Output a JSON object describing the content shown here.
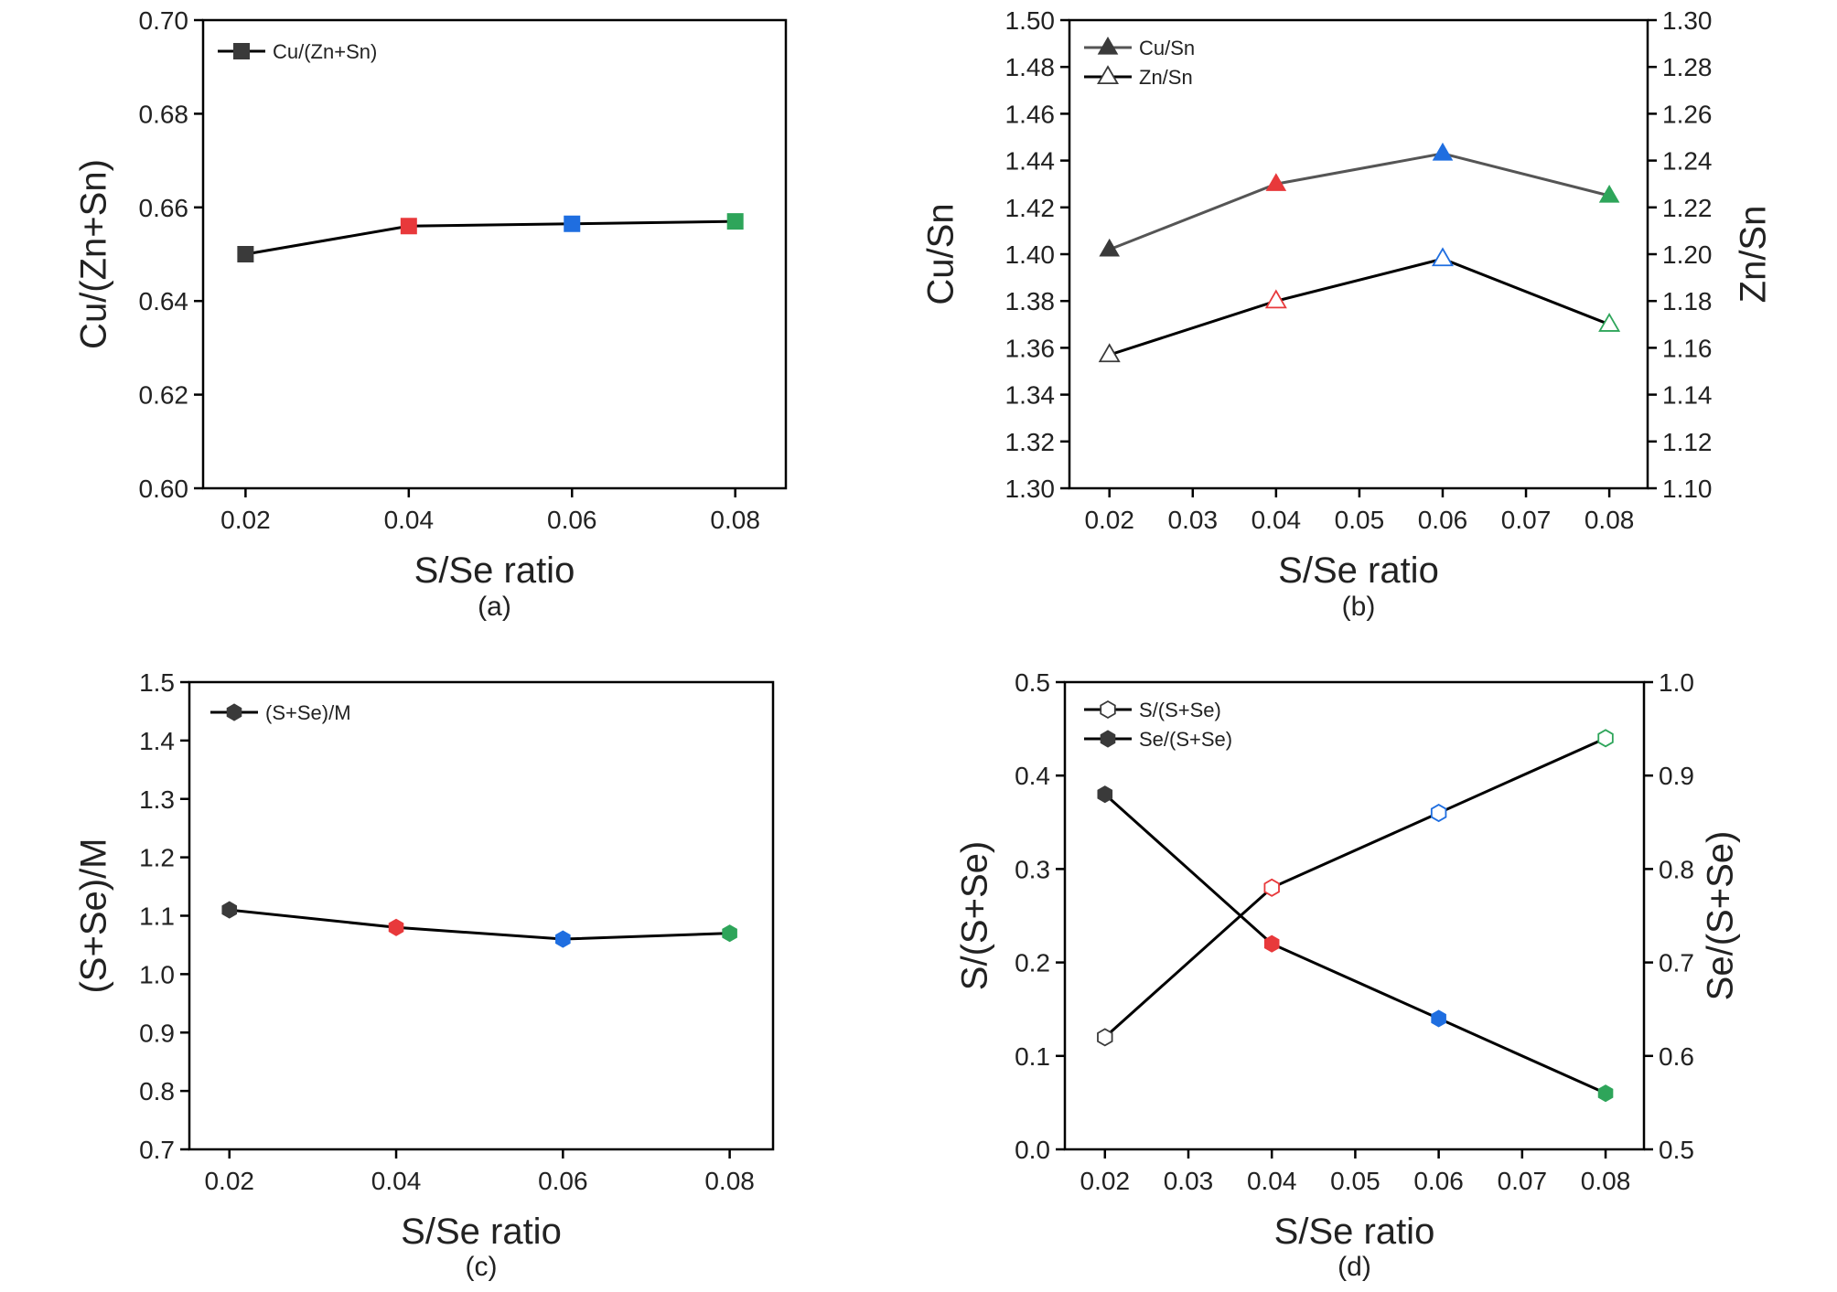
{
  "colors": {
    "axis": "#000000",
    "marker_dark": "#3a3a3a",
    "gray_line": "#555555",
    "red": "#e8393b",
    "blue": "#1f6ee0",
    "green": "#2ea55a"
  },
  "chart_data": [
    {
      "panel": "a",
      "caption": "(a)",
      "type": "line",
      "xlabel": "S/Se ratio",
      "ylabel": "Cu/(Zn+Sn)",
      "x_ticks": [
        "0.02",
        "0.04",
        "0.06",
        "0.08"
      ],
      "y_ticks": [
        "0.60",
        "0.62",
        "0.64",
        "0.66",
        "0.68",
        "0.70"
      ],
      "ylim": [
        0.6,
        0.7
      ],
      "series": [
        {
          "name": "Cu/(Zn+Sn)",
          "marker": "square",
          "filled": true,
          "x": [
            0.02,
            0.04,
            0.06,
            0.08
          ],
          "values": [
            0.65,
            0.656,
            0.6565,
            0.657
          ]
        }
      ]
    },
    {
      "panel": "b",
      "caption": "(b)",
      "type": "line",
      "xlabel": "S/Se ratio",
      "ylabel": "Cu/Sn",
      "y2label": "Zn/Sn",
      "x_ticks": [
        "0.02",
        "0.03",
        "0.04",
        "0.05",
        "0.06",
        "0.07",
        "0.08"
      ],
      "y_ticks": [
        "1.30",
        "1.32",
        "1.34",
        "1.36",
        "1.38",
        "1.40",
        "1.42",
        "1.44",
        "1.46",
        "1.48",
        "1.50"
      ],
      "y2_ticks": [
        "1.10",
        "1.12",
        "1.14",
        "1.16",
        "1.18",
        "1.20",
        "1.22",
        "1.24",
        "1.26",
        "1.28",
        "1.30"
      ],
      "ylim": [
        1.3,
        1.5
      ],
      "y2lim": [
        1.1,
        1.3
      ],
      "series": [
        {
          "name": "Cu/Sn",
          "marker": "triangle",
          "filled": true,
          "axis": "left",
          "x": [
            0.02,
            0.04,
            0.06,
            0.08
          ],
          "values": [
            1.402,
            1.43,
            1.443,
            1.425
          ]
        },
        {
          "name": "Zn/Sn",
          "marker": "triangle",
          "filled": false,
          "axis": "right",
          "x": [
            0.02,
            0.04,
            0.06,
            0.08
          ],
          "values": [
            1.157,
            1.18,
            1.198,
            1.17
          ]
        }
      ]
    },
    {
      "panel": "c",
      "caption": "(c)",
      "type": "line",
      "xlabel": "S/Se ratio",
      "ylabel": "(S+Se)/M",
      "x_ticks": [
        "0.02",
        "0.04",
        "0.06",
        "0.08"
      ],
      "y_ticks": [
        "0.7",
        "0.8",
        "0.9",
        "1.0",
        "1.1",
        "1.2",
        "1.3",
        "1.4",
        "1.5"
      ],
      "ylim": [
        0.7,
        1.5
      ],
      "series": [
        {
          "name": "(S+Se)/M",
          "marker": "hexagon",
          "filled": true,
          "x": [
            0.02,
            0.04,
            0.06,
            0.08
          ],
          "values": [
            1.11,
            1.08,
            1.06,
            1.07
          ]
        }
      ]
    },
    {
      "panel": "d",
      "caption": "(d)",
      "type": "line",
      "xlabel": "S/Se ratio",
      "ylabel": "S/(S+Se)",
      "y2label": "Se/(S+Se)",
      "x_ticks": [
        "0.02",
        "0.03",
        "0.04",
        "0.05",
        "0.06",
        "0.07",
        "0.08"
      ],
      "y_ticks": [
        "0.0",
        "0.1",
        "0.2",
        "0.3",
        "0.4",
        "0.5"
      ],
      "y2_ticks": [
        "0.5",
        "0.6",
        "0.7",
        "0.8",
        "0.9",
        "1.0"
      ],
      "ylim": [
        0.0,
        0.5
      ],
      "y2lim": [
        0.5,
        1.0
      ],
      "series": [
        {
          "name": "S/(S+Se)",
          "marker": "hexagon",
          "filled": false,
          "axis": "left",
          "x": [
            0.02,
            0.04,
            0.06,
            0.08
          ],
          "values": [
            0.12,
            0.28,
            0.36,
            0.44
          ]
        },
        {
          "name": "Se/(S+Se)",
          "marker": "hexagon",
          "filled": true,
          "axis": "right",
          "x": [
            0.02,
            0.04,
            0.06,
            0.08
          ],
          "values": [
            0.88,
            0.72,
            0.64,
            0.56
          ]
        }
      ]
    }
  ]
}
